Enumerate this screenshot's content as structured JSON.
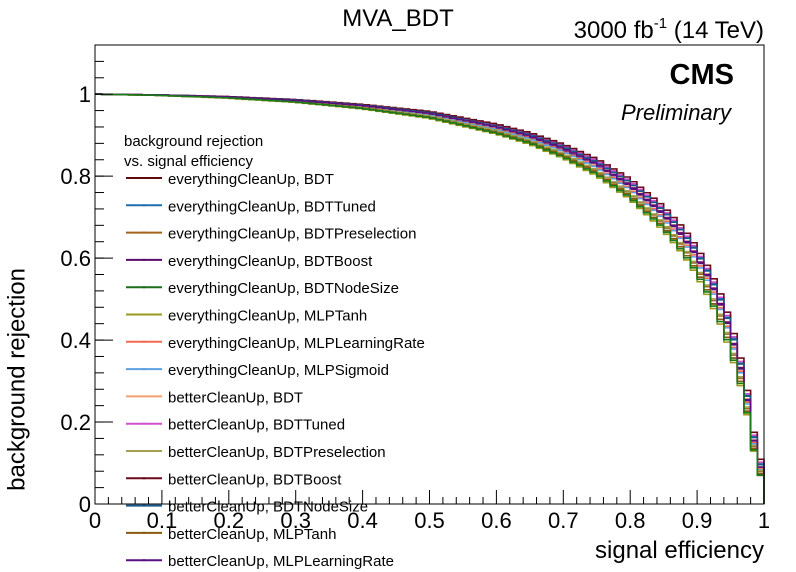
{
  "chart_data": {
    "type": "line",
    "title": "MVA_BDT",
    "lumi_label": {
      "base": "3000 fb",
      "sup": "-1",
      "rest": " (14 TeV)"
    },
    "cms_label": "CMS",
    "preliminary_label": "Preliminary",
    "xlabel": "signal efficiency",
    "ylabel": "background rejection",
    "xlim": [
      0,
      1
    ],
    "ylim": [
      0,
      1.12
    ],
    "x_ticks": [
      {
        "v": 0,
        "label": "0"
      },
      {
        "v": 0.1,
        "label": "0.1"
      },
      {
        "v": 0.2,
        "label": "0.2"
      },
      {
        "v": 0.3,
        "label": "0.3"
      },
      {
        "v": 0.4,
        "label": "0.4"
      },
      {
        "v": 0.5,
        "label": "0.5"
      },
      {
        "v": 0.6,
        "label": "0.6"
      },
      {
        "v": 0.7,
        "label": "0.7"
      },
      {
        "v": 0.8,
        "label": "0.8"
      },
      {
        "v": 0.9,
        "label": "0.9"
      },
      {
        "v": 1,
        "label": "1"
      }
    ],
    "y_ticks": [
      {
        "v": 0,
        "label": "0"
      },
      {
        "v": 0.2,
        "label": "0.2"
      },
      {
        "v": 0.4,
        "label": "0.4"
      },
      {
        "v": 0.6,
        "label": "0.6"
      },
      {
        "v": 0.8,
        "label": "0.8"
      },
      {
        "v": 1,
        "label": "1"
      }
    ],
    "grid": false,
    "legend": {
      "position": "left",
      "header_lines": [
        "background rejection",
        "vs. signal efficiency"
      ]
    },
    "x": [
      0.0,
      0.1,
      0.2,
      0.3,
      0.4,
      0.5,
      0.6,
      0.65,
      0.7,
      0.75,
      0.8,
      0.85,
      0.88,
      0.9,
      0.92,
      0.94,
      0.96,
      0.97,
      0.98,
      0.99,
      1.0
    ],
    "series": [
      {
        "name": "everythingCleanUp, BDT",
        "color": "#5c0a0a",
        "values": [
          1.0,
          0.998,
          0.993,
          0.985,
          0.972,
          0.953,
          0.92,
          0.898,
          0.868,
          0.83,
          0.778,
          0.708,
          0.652,
          0.605,
          0.545,
          0.47,
          0.365,
          0.3,
          0.21,
          0.1,
          0.08
        ]
      },
      {
        "name": "everythingCleanUp, BDTTuned",
        "color": "#1c6faf",
        "values": [
          1.0,
          0.998,
          0.994,
          0.986,
          0.973,
          0.955,
          0.923,
          0.902,
          0.873,
          0.836,
          0.786,
          0.717,
          0.662,
          0.616,
          0.557,
          0.482,
          0.378,
          0.31,
          0.22,
          0.11,
          0.09
        ]
      },
      {
        "name": "everythingCleanUp, BDTPreselection",
        "color": "#a0651a",
        "values": [
          1.0,
          0.997,
          0.991,
          0.982,
          0.967,
          0.946,
          0.91,
          0.886,
          0.853,
          0.812,
          0.757,
          0.683,
          0.625,
          0.576,
          0.515,
          0.44,
          0.338,
          0.275,
          0.19,
          0.09,
          0.07
        ]
      },
      {
        "name": "everythingCleanUp, BDTBoost",
        "color": "#5a0a6e",
        "values": [
          1.0,
          0.998,
          0.993,
          0.985,
          0.971,
          0.952,
          0.918,
          0.896,
          0.866,
          0.828,
          0.775,
          0.705,
          0.649,
          0.602,
          0.542,
          0.467,
          0.362,
          0.297,
          0.208,
          0.1,
          0.08
        ]
      },
      {
        "name": "everythingCleanUp, BDTNodeSize",
        "color": "#1a6e1a",
        "values": [
          1.0,
          0.997,
          0.991,
          0.981,
          0.966,
          0.944,
          0.907,
          0.883,
          0.85,
          0.808,
          0.752,
          0.677,
          0.618,
          0.569,
          0.507,
          0.432,
          0.331,
          0.268,
          0.185,
          0.085,
          0.06
        ]
      },
      {
        "name": "everythingCleanUp, MLPTanh",
        "color": "#9a9a1a",
        "values": [
          1.0,
          0.997,
          0.99,
          0.98,
          0.964,
          0.941,
          0.903,
          0.878,
          0.844,
          0.801,
          0.744,
          0.668,
          0.608,
          0.558,
          0.496,
          0.42,
          0.32,
          0.258,
          0.178,
          0.08,
          0.06
        ]
      },
      {
        "name": "everythingCleanUp, MLPLearningRate",
        "color": "#f06a50",
        "values": [
          1.0,
          0.998,
          0.992,
          0.984,
          0.97,
          0.95,
          0.916,
          0.893,
          0.862,
          0.823,
          0.77,
          0.699,
          0.643,
          0.596,
          0.536,
          0.46,
          0.356,
          0.292,
          0.204,
          0.096,
          0.075
        ]
      },
      {
        "name": "everythingCleanUp, MLPSigmoid",
        "color": "#5aa0e0",
        "values": [
          1.0,
          0.998,
          0.992,
          0.983,
          0.969,
          0.949,
          0.914,
          0.891,
          0.86,
          0.82,
          0.767,
          0.695,
          0.639,
          0.591,
          0.531,
          0.456,
          0.352,
          0.288,
          0.2,
          0.094,
          0.073
        ]
      },
      {
        "name": "betterCleanUp, BDT",
        "color": "#f4a070",
        "values": [
          1.0,
          0.998,
          0.993,
          0.985,
          0.972,
          0.953,
          0.92,
          0.898,
          0.868,
          0.83,
          0.779,
          0.709,
          0.653,
          0.606,
          0.546,
          0.471,
          0.366,
          0.301,
          0.211,
          0.101,
          0.08
        ]
      },
      {
        "name": "betterCleanUp, BDTTuned",
        "color": "#d050d0",
        "values": [
          1.0,
          0.998,
          0.994,
          0.986,
          0.974,
          0.956,
          0.924,
          0.903,
          0.874,
          0.838,
          0.788,
          0.72,
          0.665,
          0.619,
          0.56,
          0.486,
          0.382,
          0.314,
          0.224,
          0.112,
          0.092
        ]
      },
      {
        "name": "betterCleanUp, BDTPreselection",
        "color": "#a0a050",
        "values": [
          1.0,
          0.997,
          0.991,
          0.982,
          0.968,
          0.947,
          0.911,
          0.887,
          0.855,
          0.814,
          0.759,
          0.686,
          0.628,
          0.58,
          0.519,
          0.444,
          0.342,
          0.279,
          0.194,
          0.092,
          0.072
        ]
      },
      {
        "name": "betterCleanUp, BDTBoost",
        "color": "#6a0a1a",
        "values": [
          1.0,
          0.998,
          0.994,
          0.987,
          0.975,
          0.958,
          0.927,
          0.906,
          0.878,
          0.842,
          0.793,
          0.726,
          0.672,
          0.626,
          0.568,
          0.494,
          0.39,
          0.322,
          0.232,
          0.118,
          0.1
        ]
      },
      {
        "name": "betterCleanUp, BDTNodeSize",
        "color": "#1a5a8a",
        "values": [
          1.0,
          0.998,
          0.993,
          0.986,
          0.973,
          0.955,
          0.922,
          0.901,
          0.872,
          0.834,
          0.784,
          0.715,
          0.66,
          0.613,
          0.554,
          0.479,
          0.375,
          0.308,
          0.218,
          0.106,
          0.086
        ]
      },
      {
        "name": "betterCleanUp, MLPTanh",
        "color": "#8a5a10",
        "values": [
          1.0,
          0.997,
          0.991,
          0.981,
          0.966,
          0.944,
          0.907,
          0.883,
          0.85,
          0.808,
          0.752,
          0.677,
          0.618,
          0.569,
          0.507,
          0.432,
          0.331,
          0.268,
          0.185,
          0.085,
          0.065
        ]
      },
      {
        "name": "betterCleanUp, MLPLearningRate",
        "color": "#5a1080",
        "values": [
          1.0,
          0.998,
          0.993,
          0.985,
          0.972,
          0.953,
          0.92,
          0.898,
          0.868,
          0.83,
          0.778,
          0.708,
          0.652,
          0.605,
          0.545,
          0.47,
          0.365,
          0.3,
          0.21,
          0.1,
          0.08
        ]
      },
      {
        "name": "",
        "color": "#1a7a1a",
        "values": [
          1.0,
          0.997,
          0.991,
          0.981,
          0.965,
          0.943,
          0.905,
          0.881,
          0.847,
          0.805,
          0.748,
          0.673,
          0.613,
          0.564,
          0.502,
          0.426,
          0.326,
          0.263,
          0.182,
          0.082,
          0.058
        ]
      }
    ]
  }
}
